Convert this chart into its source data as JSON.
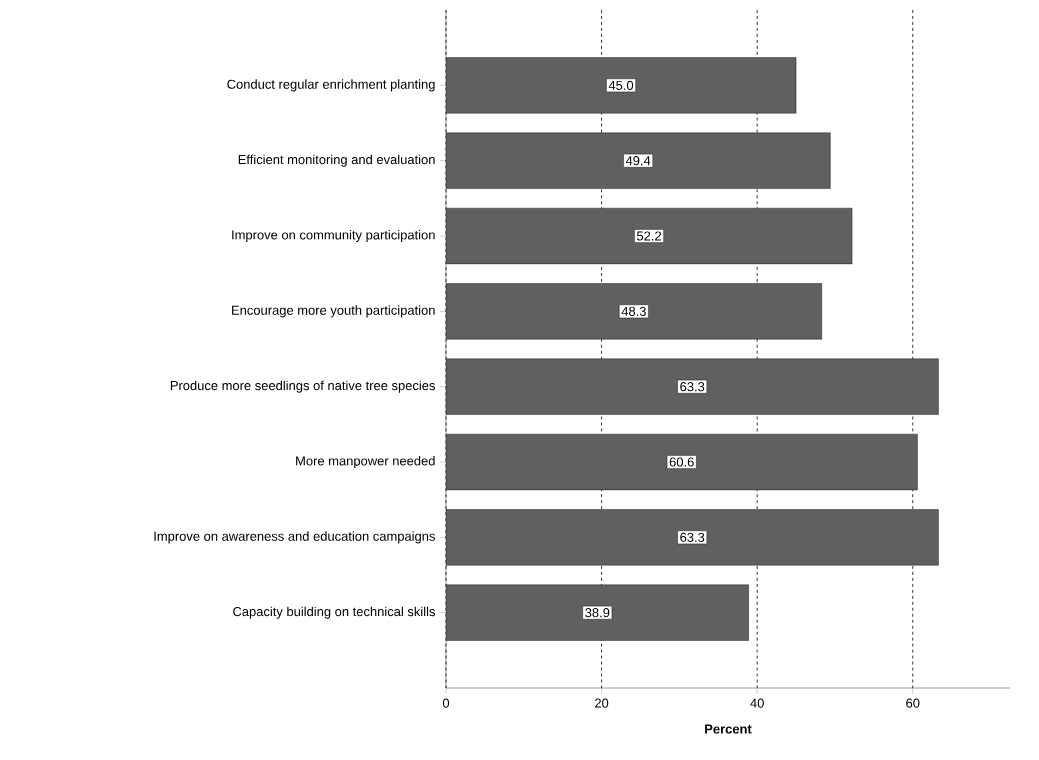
{
  "chart_data": {
    "type": "bar",
    "orientation": "horizontal",
    "xlabel": "Percent",
    "categories": [
      "Conduct regular enrichment planting",
      "Efficient monitoring and evaluation",
      "Improve on community participation",
      "Encourage more youth participation",
      "Produce more seedlings of native tree species",
      "More manpower needed",
      "Improve on awareness and education campaigns",
      "Capacity building on technical skills"
    ],
    "values": [
      45.0,
      49.4,
      52.2,
      48.3,
      63.3,
      60.6,
      63.3,
      38.9
    ],
    "value_labels": [
      "45.0",
      "49.4",
      "52.2",
      "48.3",
      "63.3",
      "60.6",
      "63.3",
      "38.9"
    ],
    "color": "#606060",
    "xlim": [
      0,
      72.5
    ],
    "xticks": [
      0,
      20,
      40,
      60
    ],
    "grid": "x"
  }
}
